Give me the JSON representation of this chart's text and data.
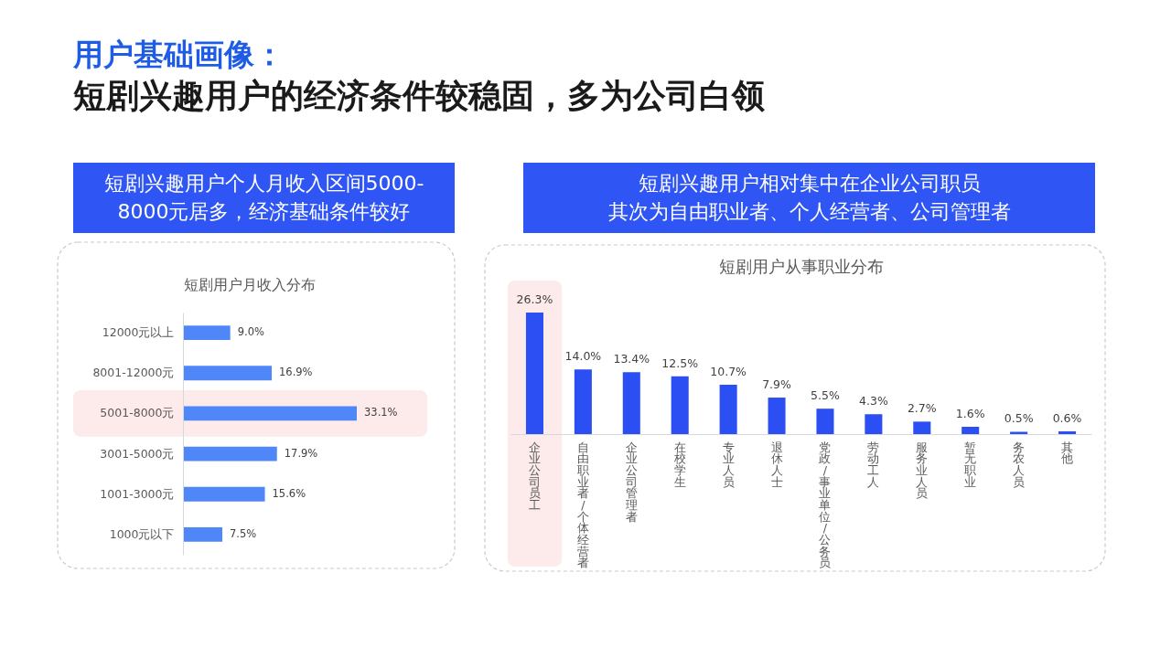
{
  "chart_data": [
    {
      "type": "other",
      "title": "用户基础画像：",
      "subtitle": "短剧兴趣用户的经济条件较稳固，多为公司白领"
    },
    {
      "type": "bar",
      "orientation": "horizontal",
      "title": "短剧用户月收入分布",
      "annotations": [
        "短剧兴趣用户个人月收入区间5000-8000元居多，经济基础条件较好"
      ],
      "categories": [
        "12000元以上",
        "8001-12000元",
        "5001-8000元",
        "3001-5000元",
        "1001-3000元",
        "1000元以下"
      ],
      "values": [
        9.0,
        16.9,
        33.1,
        17.9,
        15.6,
        7.5
      ],
      "value_labels": [
        "9.0%",
        "16.9%",
        "33.1%",
        "17.9%",
        "15.6%",
        "7.5%"
      ],
      "color": "#4f86f8",
      "bands": [
        {
          "axis": "y",
          "from": "5001-8000元",
          "to": "5001-8000元",
          "color": "#fdeaea"
        }
      ]
    },
    {
      "type": "bar",
      "title": "短剧用户从事职业分布",
      "annotations": [
        "短剧兴趣用户相对集中在企业公司职员其次为自由职业者、个人经营者、公司管理者"
      ],
      "categories": [
        "企业公司员工",
        "自由职业者/个体经营者",
        "企业公司管理者",
        "在校学生",
        "专业人员",
        "退休人士",
        "党政/事业单位/公务员",
        "劳动工人",
        "服务业人员",
        "暂无职业",
        "务农人员",
        "其他"
      ],
      "values": [
        26.3,
        14.0,
        13.4,
        12.5,
        10.7,
        7.9,
        5.5,
        4.3,
        2.7,
        1.6,
        0.5,
        0.6
      ],
      "value_labels": [
        "26.3%",
        "14.0%",
        "13.4%",
        "12.5%",
        "10.7%",
        "7.9%",
        "5.5%",
        "4.3%",
        "2.7%",
        "1.6%",
        "0.5%",
        "0.6%"
      ],
      "color": "#2c4ff4",
      "bands": [
        {
          "axis": "x",
          "from": "企业公司员工",
          "to": "企业公司员工",
          "color": "#fdeaea"
        }
      ]
    }
  ]
}
